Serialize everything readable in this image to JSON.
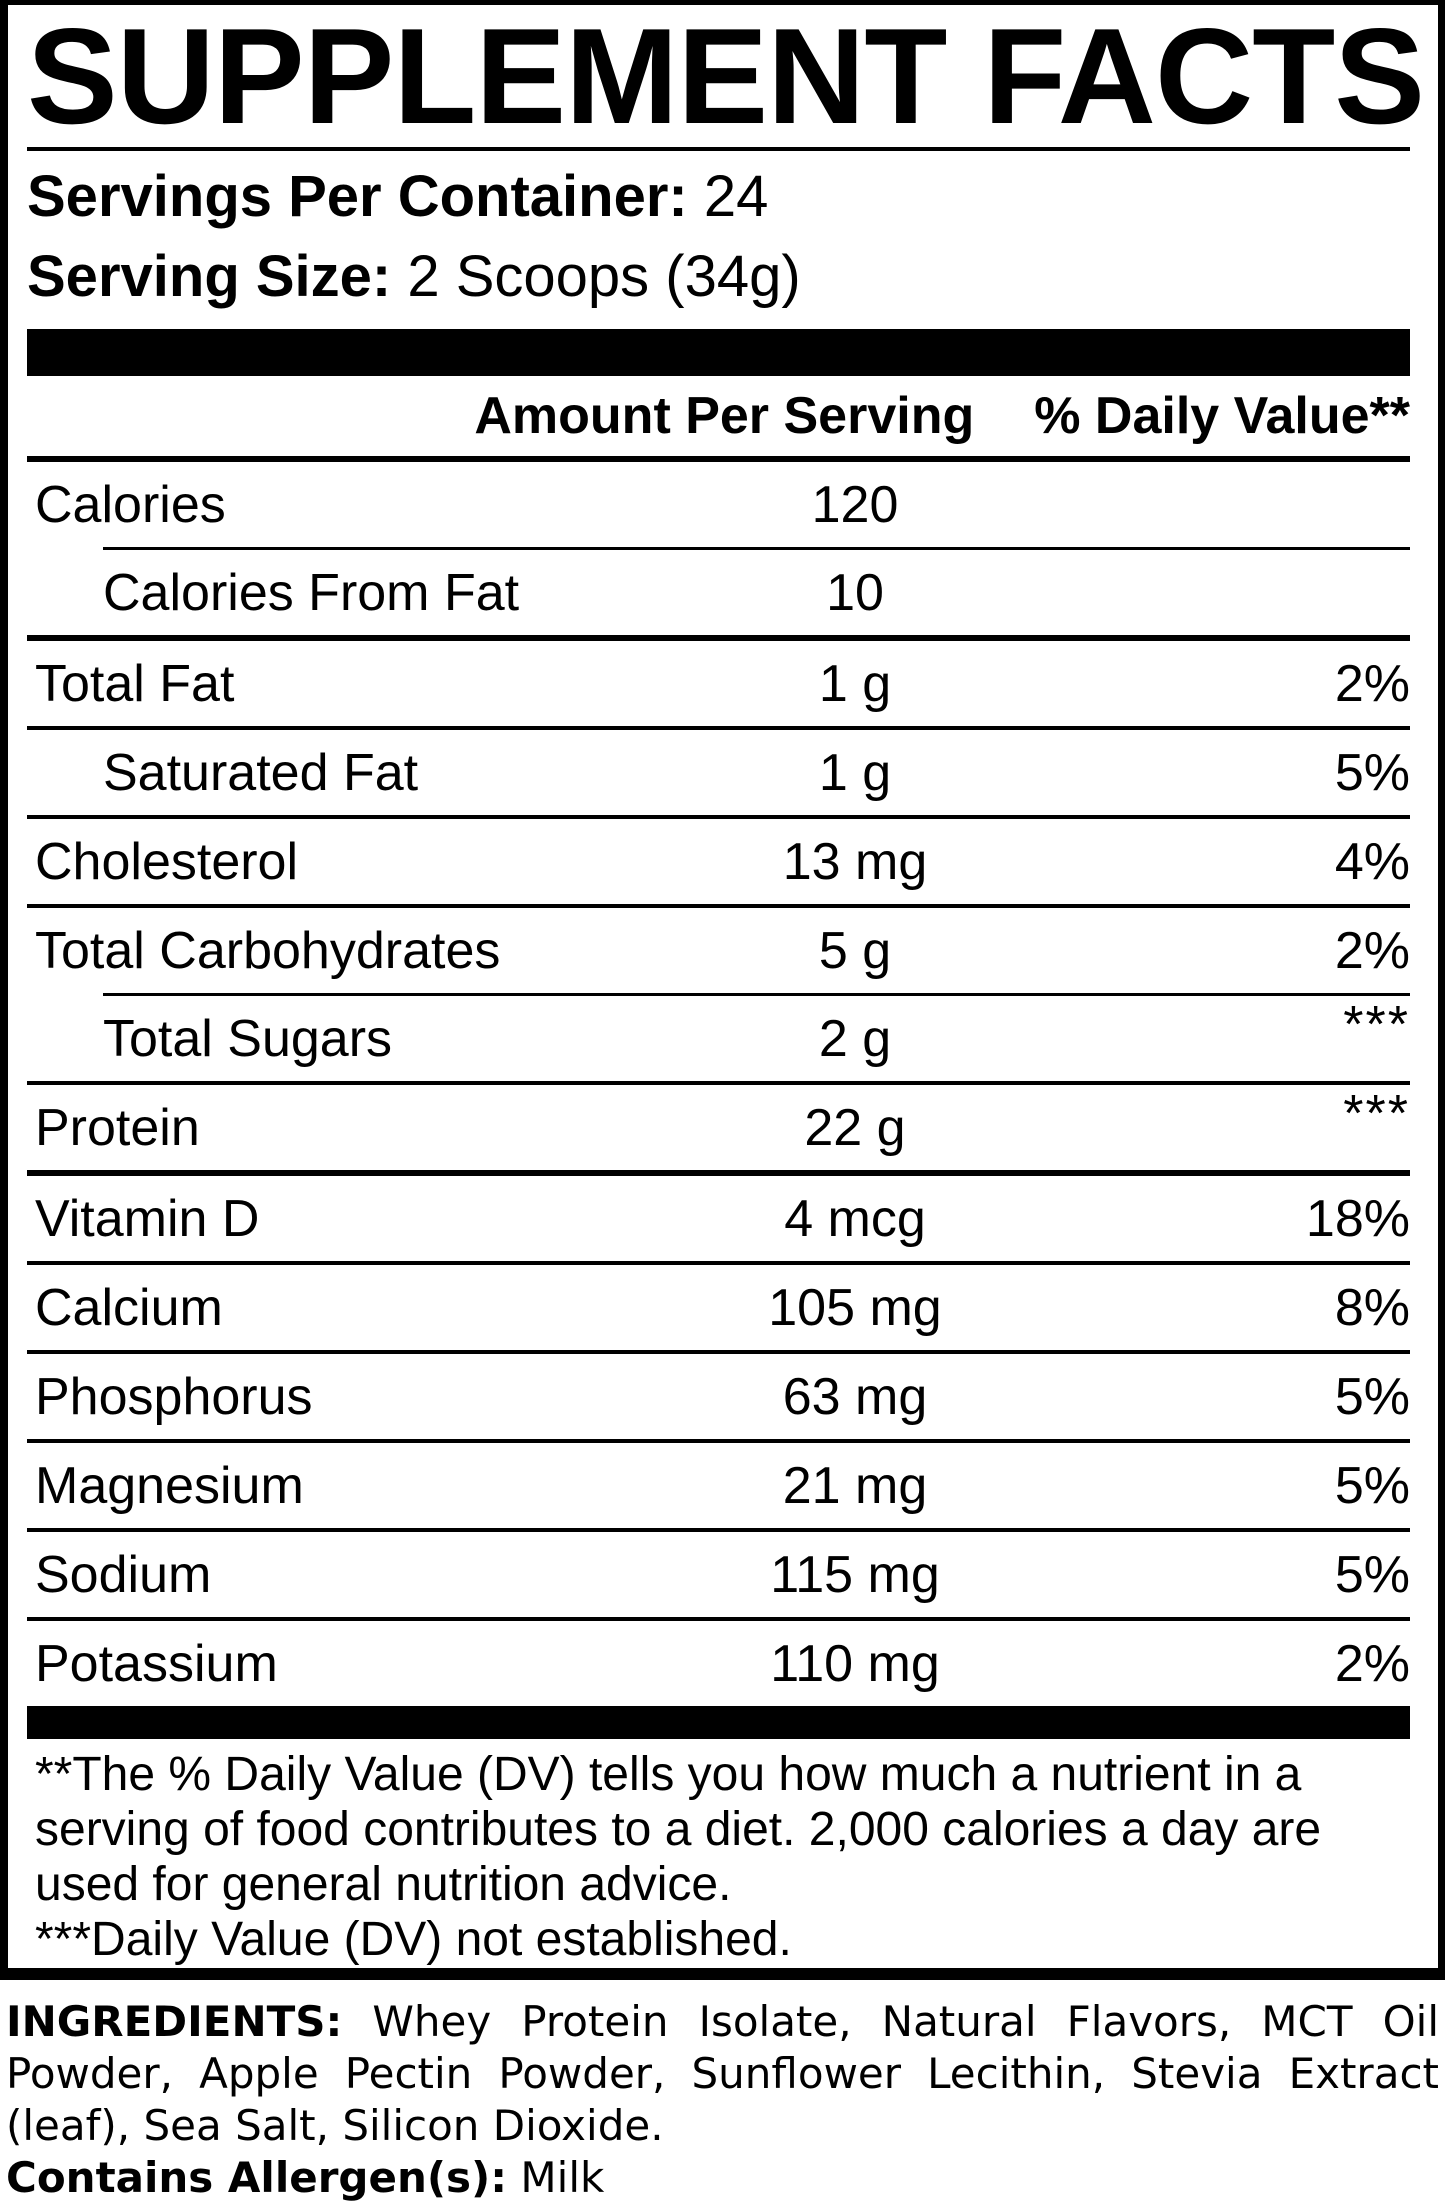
{
  "supplement_facts": {
    "title": "SUPPLEMENT FACTS",
    "servings_per_container": {
      "label": "Servings Per Container:",
      "value": "24"
    },
    "serving_size": {
      "label": "Serving Size:",
      "value": "2 Scoops (34g)"
    },
    "table": {
      "amount_header": "Amount Per Serving",
      "dv_header": "% Daily Value**",
      "rows": [
        {
          "label": "Calories",
          "amount": "120",
          "dv": "",
          "indent": false,
          "sep": "thick"
        },
        {
          "label": "Calories From Fat",
          "amount": "10",
          "dv": "",
          "indent": true,
          "sep": "indent"
        },
        {
          "label": "Total Fat",
          "amount": "1 g",
          "dv": "2%",
          "indent": false,
          "sep": "thick"
        },
        {
          "label": "Saturated Fat",
          "amount": "1 g",
          "dv": "5%",
          "indent": true,
          "sep": "full"
        },
        {
          "label": "Cholesterol",
          "amount": "13 mg",
          "dv": "4%",
          "indent": false,
          "sep": "full"
        },
        {
          "label": "Total Carbohydrates",
          "amount": "5 g",
          "dv": "2%",
          "indent": false,
          "sep": "full"
        },
        {
          "label": "Total Sugars",
          "amount": "2 g",
          "dv": "***",
          "indent": true,
          "sep": "indent"
        },
        {
          "label": "Protein",
          "amount": "22 g",
          "dv": "***",
          "indent": false,
          "sep": "full"
        },
        {
          "label": "Vitamin D",
          "amount": "4 mcg",
          "dv": "18%",
          "indent": false,
          "sep": "thick"
        },
        {
          "label": "Calcium",
          "amount": "105 mg",
          "dv": "8%",
          "indent": false,
          "sep": "full"
        },
        {
          "label": "Phosphorus",
          "amount": "63 mg",
          "dv": "5%",
          "indent": false,
          "sep": "full"
        },
        {
          "label": "Magnesium",
          "amount": "21 mg",
          "dv": "5%",
          "indent": false,
          "sep": "full"
        },
        {
          "label": "Sodium",
          "amount": "115 mg",
          "dv": "5%",
          "indent": false,
          "sep": "full"
        },
        {
          "label": "Potassium",
          "amount": "110 mg",
          "dv": "2%",
          "indent": false,
          "sep": "full"
        }
      ]
    },
    "footnotes": {
      "lines": [
        "**The % Daily Value (DV) tells you how much a nutrient in a",
        "serving of food contributes to a diet. 2,000 calories a day are",
        "used for general nutrition advice.",
        "***Daily Value (DV) not established."
      ]
    },
    "ingredients": {
      "label": "INGREDIENTS:",
      "text": "Whey Protein Isolate, Natural Flavors, MCT Oil Powder, Apple Pectin Powder, Sunflower Lecithin, Stevia Extract (leaf), Sea Salt, Silicon Dioxide."
    },
    "allergens": {
      "label": "Contains Allergen(s):",
      "value": "Milk"
    },
    "colors": {
      "ink": "#000000",
      "paper": "#ffffff"
    }
  }
}
